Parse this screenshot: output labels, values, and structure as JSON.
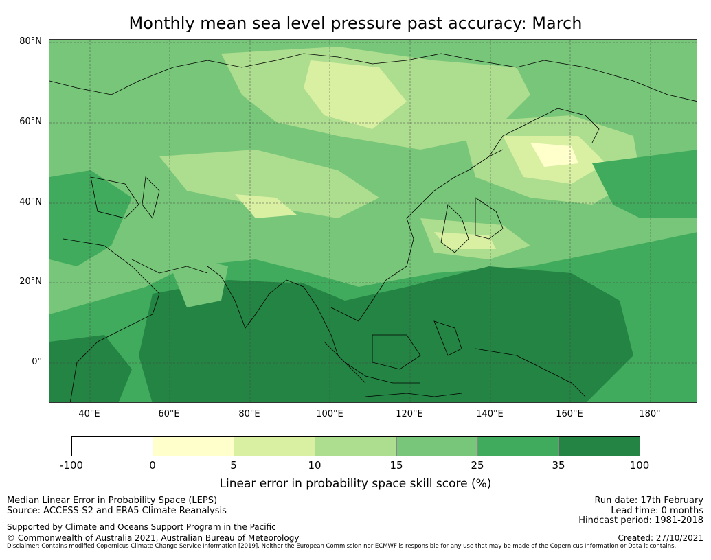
{
  "title": "Monthly mean sea level pressure past accuracy: March",
  "map": {
    "lat_labels": [
      "80°N",
      "60°N",
      "40°N",
      "20°N",
      "0°"
    ],
    "lon_labels": [
      "40°E",
      "60°E",
      "80°E",
      "100°E",
      "120°E",
      "140°E",
      "160°E",
      "180°"
    ],
    "lon_range": [
      30,
      192
    ],
    "lat_range": [
      -10,
      81
    ]
  },
  "colorbar": {
    "title": "Linear error in probability space skill score (%)",
    "ticks": [
      "-100",
      "0",
      "5",
      "10",
      "15",
      "25",
      "35",
      "100"
    ],
    "colors": [
      "#ffffff",
      "#ffffcc",
      "#d9f0a3",
      "#addd8e",
      "#78c679",
      "#41ab5d",
      "#238443"
    ]
  },
  "footer": {
    "line1": "Median Linear Error in Probability Space (LEPS)",
    "line2": "Source: ACCESS-S2 and ERA5 Climate Reanalysis",
    "supported": "Supported by Climate and Oceans Support Program in the Pacific",
    "copyright": "© Commonwealth of Australia 2021, Australian Bureau of Meteorology",
    "run_date": "Run date: 17th February",
    "lead_time": "Lead time: 0 months",
    "hindcast": "Hindcast period: 1981-2018",
    "created": "Created: 27/10/2021",
    "disclaimer": "Disclaimer: Contains modified Copernicus Climate Change Service Information [2019]. Neither the European Commission nor ECMWF is responsible for any use that may be made of the Copernicus Information or Data it contains."
  }
}
